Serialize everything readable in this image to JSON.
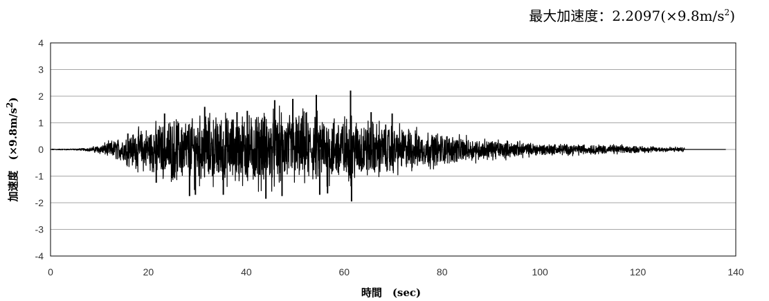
{
  "chart_data": {
    "type": "line",
    "title": "",
    "annotation": {
      "prefix": "最大加速度：2.2097(×9.8m/s",
      "superscript": "2",
      "suffix": ")"
    },
    "xlabel": "時間　(sec)",
    "ylabel": {
      "prefix": "加速度　(×9.8m/s",
      "superscript": "2",
      "suffix": ")"
    },
    "xlim": [
      0,
      140
    ],
    "ylim": [
      -4,
      4
    ],
    "x_ticks": [
      "0",
      "20",
      "40",
      "60",
      "80",
      "100",
      "120",
      "140"
    ],
    "y_ticks": [
      "4",
      "3",
      "2",
      "1",
      "0",
      "-1",
      "-2",
      "-3",
      "-4"
    ],
    "grid": "horizontal",
    "series": [
      {
        "color": "#000000",
        "duration": 138,
        "signal_end": 129.5,
        "envelope": [
          [
            0,
            0.02
          ],
          [
            5,
            0.03
          ],
          [
            8,
            0.08
          ],
          [
            10,
            0.2
          ],
          [
            12,
            0.35
          ],
          [
            15,
            0.6
          ],
          [
            18,
            0.9
          ],
          [
            20,
            1.0
          ],
          [
            22,
            1.2
          ],
          [
            25,
            1.35
          ],
          [
            28,
            1.45
          ],
          [
            30,
            1.5
          ],
          [
            35,
            1.55
          ],
          [
            40,
            1.6
          ],
          [
            45,
            1.65
          ],
          [
            50,
            1.65
          ],
          [
            55,
            1.6
          ],
          [
            60,
            1.5
          ],
          [
            65,
            1.3
          ],
          [
            70,
            1.1
          ],
          [
            75,
            0.9
          ],
          [
            80,
            0.7
          ],
          [
            85,
            0.55
          ],
          [
            90,
            0.45
          ],
          [
            95,
            0.35
          ],
          [
            100,
            0.28
          ],
          [
            105,
            0.25
          ],
          [
            110,
            0.22
          ],
          [
            115,
            0.2
          ],
          [
            120,
            0.15
          ],
          [
            125,
            0.12
          ],
          [
            129.5,
            0.1
          ],
          [
            130,
            0.01
          ],
          [
            138,
            0.01
          ]
        ],
        "peaks": [
          {
            "x": 15.8,
            "y": 0.6
          },
          {
            "x": 21.6,
            "y": -1.25
          },
          {
            "x": 23.3,
            "y": 1.35
          },
          {
            "x": 28.4,
            "y": -1.75
          },
          {
            "x": 29.6,
            "y": -1.7
          },
          {
            "x": 31.5,
            "y": 1.6
          },
          {
            "x": 35.3,
            "y": -1.7
          },
          {
            "x": 38.1,
            "y": 1.4
          },
          {
            "x": 40.2,
            "y": 1.45
          },
          {
            "x": 44.0,
            "y": -1.85
          },
          {
            "x": 45.8,
            "y": 1.85
          },
          {
            "x": 47.3,
            "y": -1.75
          },
          {
            "x": 49.5,
            "y": 1.9
          },
          {
            "x": 54.3,
            "y": 2.05
          },
          {
            "x": 55.0,
            "y": -1.7
          },
          {
            "x": 56.6,
            "y": -1.65
          },
          {
            "x": 61.3,
            "y": 2.2097
          },
          {
            "x": 61.5,
            "y": -1.95
          },
          {
            "x": 65.5,
            "y": 1.4
          },
          {
            "x": 69.8,
            "y": 1.35
          }
        ]
      }
    ]
  }
}
